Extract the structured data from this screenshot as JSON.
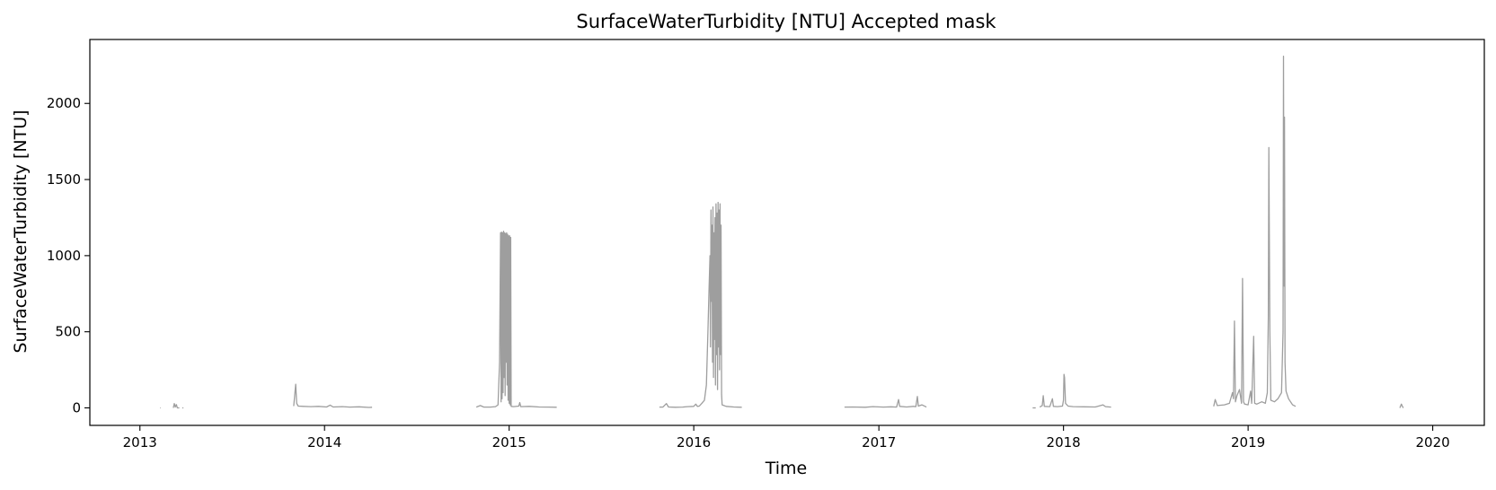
{
  "chart_data": {
    "type": "line",
    "title": "SurfaceWaterTurbidity [NTU] Accepted mask",
    "xlabel": "Time",
    "ylabel": "SurfaceWaterTurbidity [NTU]",
    "x_scale": "time",
    "xlim": [
      "2012-09-24",
      "2020-04-12"
    ],
    "ylim": [
      -115,
      2420
    ],
    "xticks": [
      "2013",
      "2014",
      "2015",
      "2016",
      "2017",
      "2018",
      "2019",
      "2020"
    ],
    "yticks": [
      0,
      500,
      1000,
      1500,
      2000
    ],
    "grid": false,
    "legend": null,
    "series": [
      {
        "color": "#9e9e9e",
        "segments": [
          [
            [
              "2013-02-10",
              0
            ],
            [
              "2013-02-11",
              0
            ]
          ],
          [
            [
              "2013-03-08",
              0
            ],
            [
              "2013-03-10",
              28
            ],
            [
              "2013-03-12",
              5
            ],
            [
              "2013-03-14",
              22
            ],
            [
              "2013-03-16",
              0
            ],
            [
              "2013-03-20",
              0
            ]
          ],
          [
            [
              "2013-03-26",
              0
            ],
            [
              "2013-03-28",
              0
            ]
          ],
          [
            [
              "2013-11-01",
              12
            ],
            [
              "2013-11-05",
              155
            ],
            [
              "2013-11-07",
              30
            ],
            [
              "2013-11-10",
              12
            ],
            [
              "2013-11-20",
              10
            ],
            [
              "2013-12-05",
              8
            ],
            [
              "2013-12-20",
              10
            ],
            [
              "2014-01-05",
              6
            ],
            [
              "2014-01-12",
              18
            ],
            [
              "2014-01-18",
              6
            ],
            [
              "2014-02-05",
              8
            ],
            [
              "2014-02-20",
              5
            ],
            [
              "2014-03-10",
              7
            ],
            [
              "2014-03-30",
              3
            ],
            [
              "2014-04-05",
              4
            ]
          ],
          [
            [
              "2014-10-28",
              5
            ],
            [
              "2014-11-05",
              15
            ],
            [
              "2014-11-12",
              5
            ],
            [
              "2014-11-25",
              5
            ],
            [
              "2014-12-05",
              8
            ],
            [
              "2014-12-10",
              20
            ],
            [
              "2014-12-13",
              300
            ],
            [
              "2014-12-15",
              1150
            ],
            [
              "2014-12-16",
              40
            ],
            [
              "2014-12-17",
              1155
            ],
            [
              "2014-12-18",
              60
            ],
            [
              "2014-12-19",
              1150
            ],
            [
              "2014-12-20",
              100
            ],
            [
              "2014-12-21",
              1160
            ],
            [
              "2014-12-22",
              200
            ],
            [
              "2014-12-23",
              1150
            ],
            [
              "2014-12-24",
              80
            ],
            [
              "2014-12-25",
              1145
            ],
            [
              "2014-12-26",
              300
            ],
            [
              "2014-12-27",
              1150
            ],
            [
              "2014-12-28",
              150
            ],
            [
              "2014-12-29",
              1140
            ],
            [
              "2014-12-30",
              50
            ],
            [
              "2014-12-31",
              1130
            ],
            [
              "2015-01-01",
              30
            ],
            [
              "2015-01-02",
              1130
            ],
            [
              "2015-01-03",
              20
            ],
            [
              "2015-01-04",
              1120
            ],
            [
              "2015-01-05",
              10
            ],
            [
              "2015-01-10",
              8
            ],
            [
              "2015-01-20",
              12
            ],
            [
              "2015-01-22",
              35
            ],
            [
              "2015-01-24",
              8
            ],
            [
              "2015-02-10",
              10
            ],
            [
              "2015-03-01",
              6
            ],
            [
              "2015-03-20",
              5
            ],
            [
              "2015-04-05",
              4
            ]
          ],
          [
            [
              "2015-10-25",
              5
            ],
            [
              "2015-11-01",
              5
            ],
            [
              "2015-11-08",
              28
            ],
            [
              "2015-11-12",
              6
            ],
            [
              "2015-11-25",
              4
            ],
            [
              "2015-12-10",
              5
            ],
            [
              "2015-12-20",
              8
            ],
            [
              "2016-01-01",
              10
            ],
            [
              "2016-01-05",
              25
            ],
            [
              "2016-01-08",
              10
            ],
            [
              "2016-01-12",
              12
            ],
            [
              "2016-01-17",
              30
            ],
            [
              "2016-01-22",
              50
            ],
            [
              "2016-01-26",
              150
            ],
            [
              "2016-01-29",
              500
            ],
            [
              "2016-01-31",
              750
            ],
            [
              "2016-02-02",
              1000
            ],
            [
              "2016-02-03",
              400
            ],
            [
              "2016-02-04",
              1300
            ],
            [
              "2016-02-05",
              700
            ],
            [
              "2016-02-06",
              1200
            ],
            [
              "2016-02-07",
              300
            ],
            [
              "2016-02-08",
              1320
            ],
            [
              "2016-02-09",
              200
            ],
            [
              "2016-02-10",
              1150
            ],
            [
              "2016-02-11",
              450
            ],
            [
              "2016-02-12",
              1250
            ],
            [
              "2016-02-13",
              150
            ],
            [
              "2016-02-14",
              1340
            ],
            [
              "2016-02-15",
              350
            ],
            [
              "2016-02-16",
              1280
            ],
            [
              "2016-02-17",
              120
            ],
            [
              "2016-02-18",
              1350
            ],
            [
              "2016-02-19",
              400
            ],
            [
              "2016-02-20",
              1300
            ],
            [
              "2016-02-21",
              250
            ],
            [
              "2016-02-22",
              1340
            ],
            [
              "2016-02-23",
              350
            ],
            [
              "2016-02-24",
              1200
            ],
            [
              "2016-02-25",
              90
            ],
            [
              "2016-02-26",
              20
            ],
            [
              "2016-03-05",
              10
            ],
            [
              "2016-03-20",
              6
            ],
            [
              "2016-04-05",
              4
            ]
          ],
          [
            [
              "2016-10-25",
              5
            ],
            [
              "2016-11-10",
              6
            ],
            [
              "2016-12-05",
              4
            ],
            [
              "2016-12-20",
              8
            ],
            [
              "2017-01-10",
              5
            ],
            [
              "2017-01-25",
              7
            ],
            [
              "2017-02-05",
              5
            ],
            [
              "2017-02-09",
              55
            ],
            [
              "2017-02-11",
              10
            ],
            [
              "2017-02-25",
              6
            ],
            [
              "2017-03-10",
              10
            ],
            [
              "2017-03-15",
              8
            ],
            [
              "2017-03-18",
              75
            ],
            [
              "2017-03-20",
              12
            ],
            [
              "2017-03-27",
              20
            ],
            [
              "2017-04-05",
              5
            ]
          ],
          [
            [
              "2017-11-01",
              0
            ],
            [
              "2017-11-07",
              0
            ]
          ],
          [
            [
              "2017-11-15",
              5
            ],
            [
              "2017-11-20",
              15
            ],
            [
              "2017-11-22",
              80
            ],
            [
              "2017-11-24",
              10
            ],
            [
              "2017-12-05",
              8
            ],
            [
              "2017-12-10",
              60
            ],
            [
              "2017-12-12",
              10
            ],
            [
              "2017-12-20",
              8
            ],
            [
              "2017-12-30",
              12
            ],
            [
              "2018-01-01",
              50
            ],
            [
              "2018-01-02",
              220
            ],
            [
              "2018-01-03",
              200
            ],
            [
              "2018-01-05",
              30
            ],
            [
              "2018-01-10",
              12
            ],
            [
              "2018-01-20",
              8
            ],
            [
              "2018-02-10",
              7
            ],
            [
              "2018-03-05",
              6
            ],
            [
              "2018-03-20",
              20
            ],
            [
              "2018-03-25",
              8
            ],
            [
              "2018-04-05",
              5
            ]
          ],
          [
            [
              "2018-10-25",
              10
            ],
            [
              "2018-10-28",
              55
            ],
            [
              "2018-11-01",
              15
            ],
            [
              "2018-11-15",
              20
            ],
            [
              "2018-11-25",
              30
            ],
            [
              "2018-12-01",
              100
            ],
            [
              "2018-12-03",
              60
            ],
            [
              "2018-12-05",
              570
            ],
            [
              "2018-12-07",
              40
            ],
            [
              "2018-12-10",
              80
            ],
            [
              "2018-12-15",
              120
            ],
            [
              "2018-12-19",
              30
            ],
            [
              "2018-12-21",
              850
            ],
            [
              "2018-12-23",
              40
            ],
            [
              "2018-12-25",
              25
            ],
            [
              "2019-01-01",
              20
            ],
            [
              "2019-01-06",
              110
            ],
            [
              "2019-01-08",
              30
            ],
            [
              "2019-01-12",
              470
            ],
            [
              "2019-01-14",
              30
            ],
            [
              "2019-01-18",
              25
            ],
            [
              "2019-01-28",
              40
            ],
            [
              "2019-02-04",
              30
            ],
            [
              "2019-02-08",
              100
            ],
            [
              "2019-02-10",
              600
            ],
            [
              "2019-02-11",
              1710
            ],
            [
              "2019-02-13",
              500
            ],
            [
              "2019-02-15",
              50
            ],
            [
              "2019-02-22",
              40
            ],
            [
              "2019-03-01",
              60
            ],
            [
              "2019-03-08",
              100
            ],
            [
              "2019-03-11",
              500
            ],
            [
              "2019-03-12",
              2310
            ],
            [
              "2019-03-13",
              800
            ],
            [
              "2019-03-14",
              1910
            ],
            [
              "2019-03-15",
              300
            ],
            [
              "2019-03-17",
              110
            ],
            [
              "2019-03-22",
              60
            ],
            [
              "2019-03-30",
              20
            ],
            [
              "2019-04-05",
              10
            ]
          ],
          [
            [
              "2019-10-28",
              0
            ],
            [
              "2019-10-31",
              25
            ],
            [
              "2019-11-02",
              10
            ],
            [
              "2019-11-04",
              0
            ]
          ]
        ]
      }
    ]
  }
}
